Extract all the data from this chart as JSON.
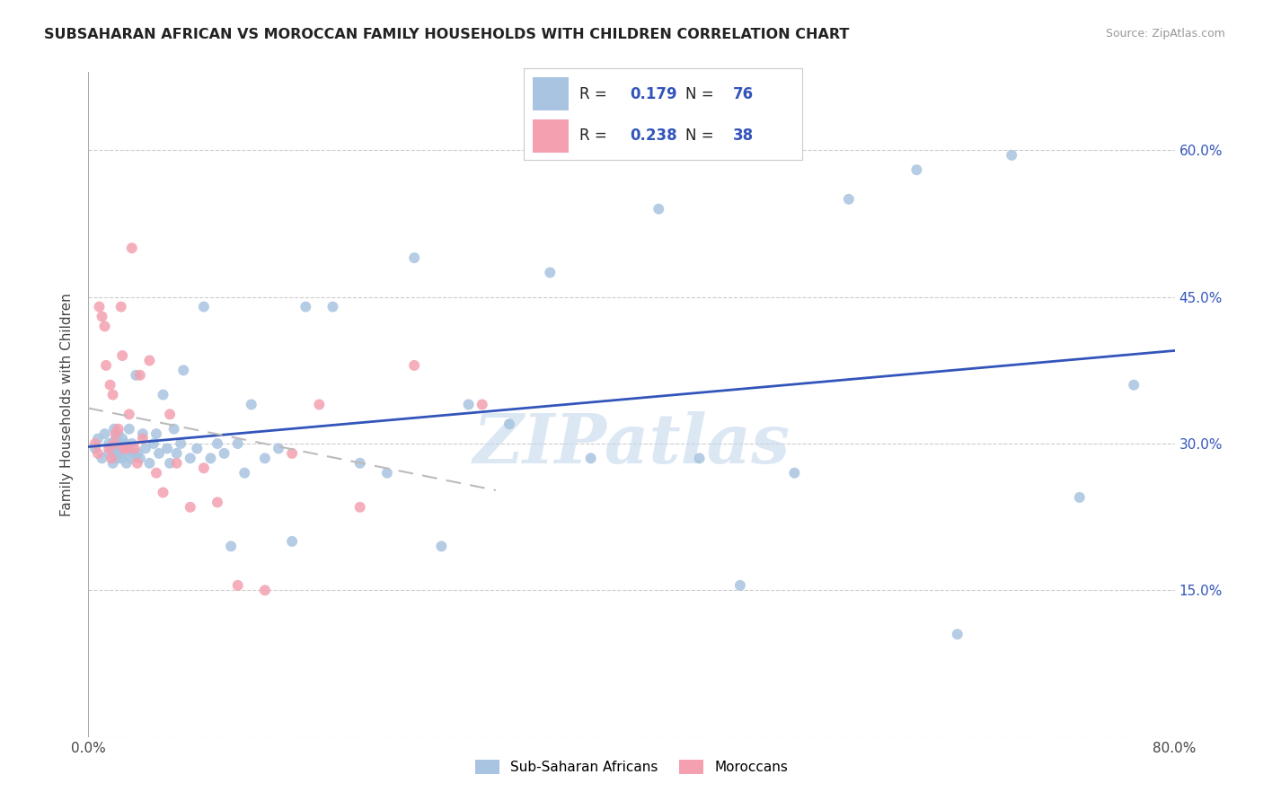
{
  "title": "SUBSAHARAN AFRICAN VS MOROCCAN FAMILY HOUSEHOLDS WITH CHILDREN CORRELATION CHART",
  "source": "Source: ZipAtlas.com",
  "ylabel": "Family Households with Children",
  "xlim": [
    0.0,
    0.8
  ],
  "ylim": [
    0.0,
    0.68
  ],
  "xticks": [
    0.0,
    0.1,
    0.2,
    0.3,
    0.4,
    0.5,
    0.6,
    0.7,
    0.8
  ],
  "xticklabels": [
    "0.0%",
    "",
    "",
    "",
    "",
    "",
    "",
    "",
    "80.0%"
  ],
  "ytick_positions": [
    0.0,
    0.15,
    0.3,
    0.45,
    0.6
  ],
  "ytick_labels": [
    "",
    "15.0%",
    "30.0%",
    "45.0%",
    "60.0%"
  ],
  "r_blue": 0.179,
  "n_blue": 76,
  "r_pink": 0.238,
  "n_pink": 38,
  "blue_color": "#a8c4e0",
  "pink_color": "#f4a0b0",
  "trend_blue_color": "#3355bb",
  "trend_pink_color": "#bbbbbb",
  "watermark": "ZIPatlas",
  "watermark_color": "#c5d8ee",
  "blue_scatter_x": [
    0.005,
    0.007,
    0.01,
    0.012,
    0.015,
    0.015,
    0.017,
    0.018,
    0.018,
    0.019,
    0.02,
    0.02,
    0.021,
    0.022,
    0.022,
    0.023,
    0.024,
    0.025,
    0.025,
    0.026,
    0.027,
    0.028,
    0.029,
    0.03,
    0.031,
    0.032,
    0.033,
    0.035,
    0.036,
    0.038,
    0.04,
    0.042,
    0.045,
    0.048,
    0.05,
    0.052,
    0.055,
    0.058,
    0.06,
    0.063,
    0.065,
    0.068,
    0.07,
    0.075,
    0.08,
    0.085,
    0.09,
    0.095,
    0.1,
    0.105,
    0.11,
    0.115,
    0.12,
    0.13,
    0.14,
    0.15,
    0.16,
    0.18,
    0.2,
    0.22,
    0.24,
    0.26,
    0.28,
    0.31,
    0.34,
    0.37,
    0.42,
    0.45,
    0.48,
    0.52,
    0.56,
    0.61,
    0.64,
    0.68,
    0.73,
    0.77
  ],
  "blue_scatter_y": [
    0.295,
    0.305,
    0.285,
    0.31,
    0.29,
    0.3,
    0.295,
    0.28,
    0.3,
    0.315,
    0.29,
    0.305,
    0.285,
    0.295,
    0.31,
    0.3,
    0.285,
    0.295,
    0.305,
    0.29,
    0.3,
    0.28,
    0.295,
    0.315,
    0.285,
    0.3,
    0.29,
    0.37,
    0.29,
    0.285,
    0.31,
    0.295,
    0.28,
    0.3,
    0.31,
    0.29,
    0.35,
    0.295,
    0.28,
    0.315,
    0.29,
    0.3,
    0.375,
    0.285,
    0.295,
    0.44,
    0.285,
    0.3,
    0.29,
    0.195,
    0.3,
    0.27,
    0.34,
    0.285,
    0.295,
    0.2,
    0.44,
    0.44,
    0.28,
    0.27,
    0.49,
    0.195,
    0.34,
    0.32,
    0.475,
    0.285,
    0.54,
    0.285,
    0.155,
    0.27,
    0.55,
    0.58,
    0.105,
    0.595,
    0.245,
    0.36
  ],
  "pink_scatter_x": [
    0.005,
    0.007,
    0.008,
    0.01,
    0.012,
    0.013,
    0.015,
    0.016,
    0.017,
    0.018,
    0.019,
    0.02,
    0.022,
    0.024,
    0.025,
    0.026,
    0.028,
    0.03,
    0.032,
    0.034,
    0.036,
    0.038,
    0.04,
    0.045,
    0.05,
    0.055,
    0.06,
    0.065,
    0.075,
    0.085,
    0.095,
    0.11,
    0.13,
    0.15,
    0.17,
    0.2,
    0.24,
    0.29
  ],
  "pink_scatter_y": [
    0.3,
    0.29,
    0.44,
    0.43,
    0.42,
    0.38,
    0.295,
    0.36,
    0.285,
    0.35,
    0.3,
    0.31,
    0.315,
    0.44,
    0.39,
    0.295,
    0.295,
    0.33,
    0.5,
    0.295,
    0.28,
    0.37,
    0.305,
    0.385,
    0.27,
    0.25,
    0.33,
    0.28,
    0.235,
    0.275,
    0.24,
    0.155,
    0.15,
    0.29,
    0.34,
    0.235,
    0.38,
    0.34
  ]
}
